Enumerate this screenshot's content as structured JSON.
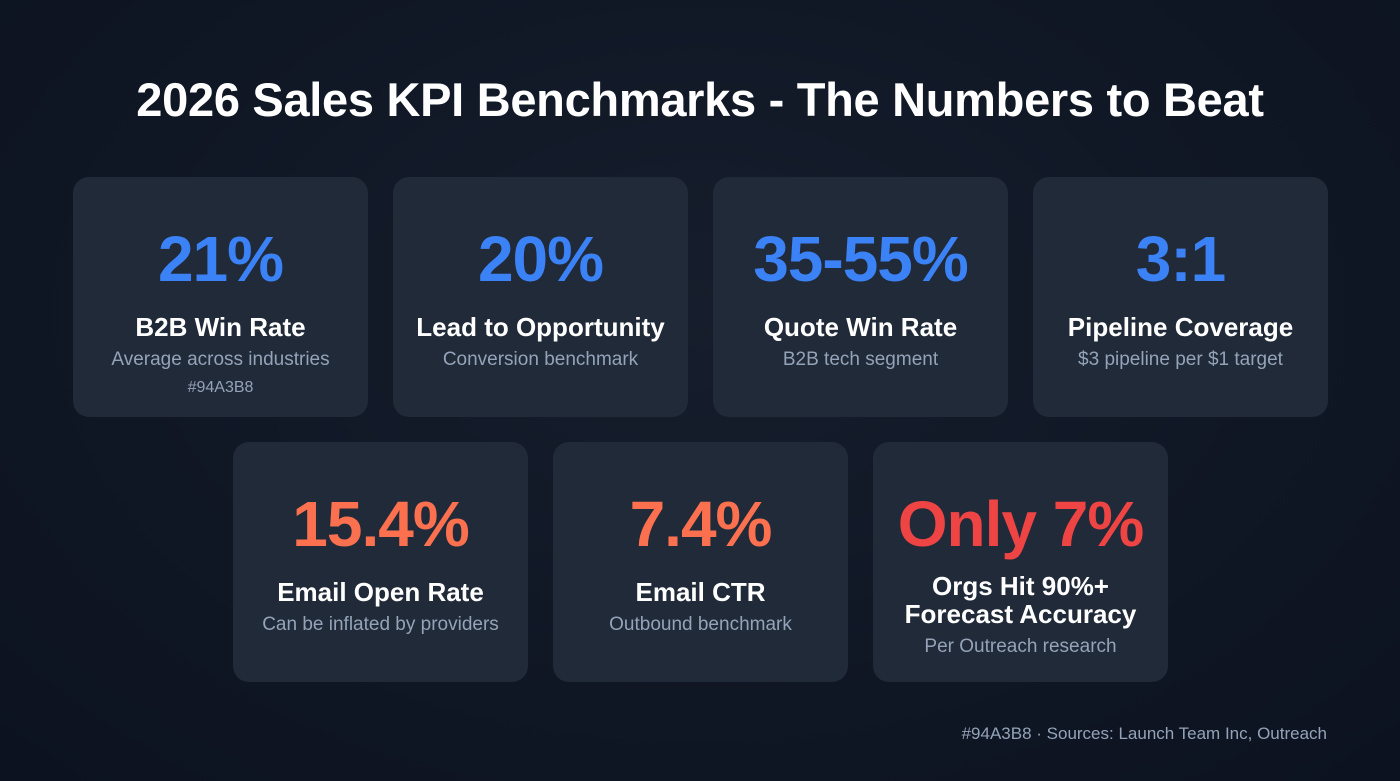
{
  "title": "2026 Sales KPI Benchmarks - The Numbers to Beat",
  "colors": {
    "blue": "#3b82f6",
    "orange": "#fb7150",
    "red": "#ef4444",
    "muted": "#94A3B8"
  },
  "cards": [
    {
      "value": "21%",
      "label": "B2B Win Rate",
      "sub": "Average across industries",
      "note": "#94A3B8"
    },
    {
      "value": "20%",
      "label": "Lead to Opportunity",
      "sub": "Conversion benchmark"
    },
    {
      "value": "35-55%",
      "label": "Quote Win Rate",
      "sub": "B2B tech segment"
    },
    {
      "value": "3:1",
      "label": "Pipeline Coverage",
      "sub": "$3 pipeline per $1 target"
    },
    {
      "value": "15.4%",
      "label": "Email Open Rate",
      "sub": "Can be inflated by providers"
    },
    {
      "value": "7.4%",
      "label": "Email CTR",
      "sub": "Outbound benchmark"
    },
    {
      "value": "Only 7%",
      "label_line1": "Orgs Hit 90%+",
      "label_line2": "Forecast Accuracy",
      "sub": "Per Outreach research"
    }
  ],
  "footer": "#94A3B8 · Sources: Launch Team Inc, Outreach"
}
